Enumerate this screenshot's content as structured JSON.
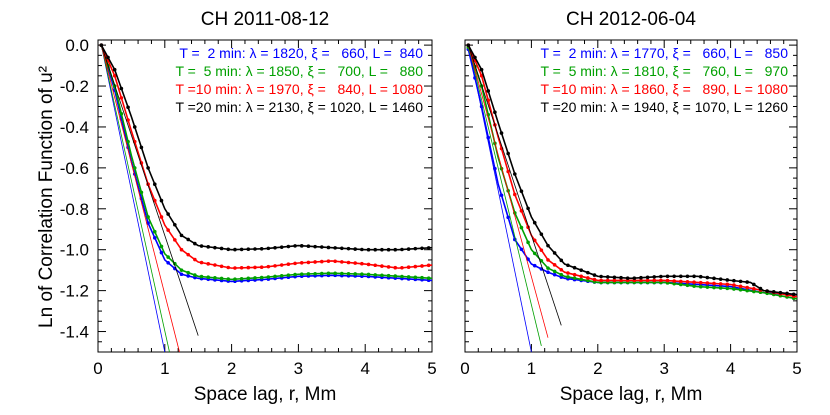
{
  "chart_data": [
    {
      "type": "line",
      "title": "CH 2011-08-12",
      "xlabel": "Space lag, r, Mm",
      "ylabel": "Ln of Correlation Function of u²",
      "xlim": [
        0,
        5
      ],
      "ylim": [
        -1.5,
        0.025
      ],
      "xticks": [
        "0",
        "1",
        "2",
        "3",
        "4",
        "5"
      ],
      "yticks": [
        "0.0",
        "-0.2",
        "-0.4",
        "-0.6",
        "-0.8",
        "-1.0",
        "-1.2",
        "-1.4"
      ],
      "grid": false,
      "legend_position": "top-right",
      "series": [
        {
          "name": "T =  2 min: λ = 1820, ξ =   660, L =  840",
          "color": "#0000ff",
          "x": [
            0.05,
            0.25,
            0.5,
            0.75,
            1,
            1.25,
            1.5,
            2,
            2.5,
            3,
            3.5,
            4,
            4.5,
            5
          ],
          "y": [
            0,
            -0.22,
            -0.57,
            -0.87,
            -1.05,
            -1.12,
            -1.14,
            -1.155,
            -1.145,
            -1.13,
            -1.125,
            -1.13,
            -1.14,
            -1.15
          ],
          "fit": {
            "x": [
              0.05,
              1.0
            ],
            "y": [
              0,
              -1.5
            ]
          }
        },
        {
          "name": "T =  5 min: λ = 1850, ξ =   700, L =   880",
          "color": "#00a000",
          "x": [
            0.05,
            0.25,
            0.5,
            0.75,
            1,
            1.25,
            1.5,
            2,
            2.5,
            3,
            3.5,
            4,
            4.5,
            5
          ],
          "y": [
            0,
            -0.2,
            -0.54,
            -0.84,
            -1.02,
            -1.1,
            -1.13,
            -1.145,
            -1.135,
            -1.12,
            -1.115,
            -1.12,
            -1.13,
            -1.14
          ],
          "fit": {
            "x": [
              0.05,
              1.07
            ],
            "y": [
              0,
              -1.5
            ]
          }
        },
        {
          "name": "T =10 min: λ = 1970, ξ =   840, L = 1080",
          "color": "#ff0000",
          "x": [
            0.05,
            0.25,
            0.5,
            0.75,
            1,
            1.25,
            1.5,
            2,
            2.5,
            3,
            3.5,
            4,
            4.5,
            5
          ],
          "y": [
            0,
            -0.15,
            -0.42,
            -0.68,
            -0.88,
            -1.0,
            -1.06,
            -1.09,
            -1.085,
            -1.065,
            -1.055,
            -1.07,
            -1.09,
            -1.075
          ],
          "fit": {
            "x": [
              0.05,
              1.22
            ],
            "y": [
              0,
              -1.5
            ]
          }
        },
        {
          "name": "T =20 min: λ = 2130, ξ = 1020, L = 1460",
          "color": "#000000",
          "x": [
            0.05,
            0.25,
            0.5,
            0.75,
            1,
            1.25,
            1.5,
            2,
            2.5,
            3,
            3.5,
            4,
            4.5,
            5
          ],
          "y": [
            0,
            -0.12,
            -0.35,
            -0.6,
            -0.8,
            -0.93,
            -0.98,
            -1.0,
            -0.995,
            -0.98,
            -0.99,
            -1.0,
            -1.0,
            -0.99
          ],
          "fit": {
            "x": [
              0.05,
              1.5
            ],
            "y": [
              0,
              -1.42
            ]
          }
        }
      ]
    },
    {
      "type": "line",
      "title": "CH 2012-06-04",
      "xlabel": "Space lag, r, Mm",
      "ylabel": "",
      "xlim": [
        0,
        5
      ],
      "ylim": [
        -1.5,
        0.025
      ],
      "xticks": [
        "0",
        "1",
        "2",
        "3",
        "4",
        "5"
      ],
      "grid": false,
      "legend_position": "top-right",
      "series": [
        {
          "name": "T =  2 min: λ = 1770, ξ =   660, L =   850",
          "color": "#0000ff",
          "x": [
            0.05,
            0.25,
            0.5,
            0.75,
            1,
            1.25,
            1.5,
            2,
            2.5,
            3,
            3.5,
            4,
            4.5,
            5
          ],
          "y": [
            -0.02,
            -0.3,
            -0.68,
            -0.95,
            -1.07,
            -1.11,
            -1.14,
            -1.16,
            -1.16,
            -1.16,
            -1.17,
            -1.18,
            -1.21,
            -1.22
          ],
          "fit": {
            "x": [
              0.05,
              1.0
            ],
            "y": [
              0,
              -1.5
            ]
          }
        },
        {
          "name": "T =  5 min: λ = 1810, ξ =   760, L =   970",
          "color": "#00a000",
          "x": [
            0.05,
            0.25,
            0.5,
            0.75,
            1,
            1.25,
            1.5,
            2,
            2.5,
            3,
            3.5,
            4,
            4.5,
            5
          ],
          "y": [
            -0.01,
            -0.2,
            -0.55,
            -0.82,
            -1.0,
            -1.09,
            -1.13,
            -1.16,
            -1.16,
            -1.16,
            -1.18,
            -1.19,
            -1.21,
            -1.24
          ],
          "fit": {
            "x": [
              0.05,
              1.15
            ],
            "y": [
              0,
              -1.47
            ]
          }
        },
        {
          "name": "T =10 min: λ = 1860, ξ =   890, L = 1080",
          "color": "#ff0000",
          "x": [
            0.05,
            0.25,
            0.5,
            0.75,
            1,
            1.25,
            1.5,
            2,
            2.5,
            3,
            3.5,
            4,
            4.5,
            5
          ],
          "y": [
            0,
            -0.15,
            -0.45,
            -0.73,
            -0.93,
            -1.05,
            -1.11,
            -1.15,
            -1.15,
            -1.15,
            -1.16,
            -1.17,
            -1.2,
            -1.23
          ],
          "fit": {
            "x": [
              0.05,
              1.25
            ],
            "y": [
              0,
              -1.43
            ]
          }
        },
        {
          "name": "T =20 min: λ = 1940, ξ = 1070, L = 1260",
          "color": "#000000",
          "x": [
            0.05,
            0.25,
            0.5,
            0.75,
            1,
            1.25,
            1.5,
            2,
            2.5,
            3,
            3.5,
            4,
            4.3,
            4.5,
            5
          ],
          "y": [
            0,
            -0.12,
            -0.38,
            -0.63,
            -0.84,
            -0.98,
            -1.07,
            -1.13,
            -1.14,
            -1.13,
            -1.13,
            -1.15,
            -1.16,
            -1.2,
            -1.22
          ],
          "fit": {
            "x": [
              0.05,
              1.45
            ],
            "y": [
              0,
              -1.37
            ]
          }
        }
      ]
    }
  ]
}
